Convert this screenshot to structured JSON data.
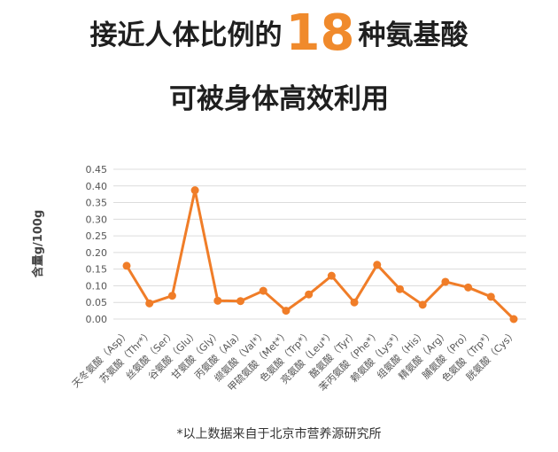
{
  "headline": {
    "line1_before": "接近人体比例的",
    "line1_number": "18",
    "line1_after": "种氨基酸",
    "line2": "可被身体高效利用"
  },
  "chart_data": {
    "type": "line",
    "title": "",
    "xlabel": "",
    "ylabel": "含量g/100g",
    "ylim": [
      0,
      0.45
    ],
    "yticks": [
      "0.00",
      "0.05",
      "0.10",
      "0.15",
      "0.20",
      "0.25",
      "0.30",
      "0.35",
      "0.40",
      "0.45"
    ],
    "grid": true,
    "categories": [
      "天冬氨酸（Asp）",
      "苏氨酸（Thr*）",
      "丝氨酸（Ser）",
      "谷氨酸（Glu）",
      "甘氨酸（Gly）",
      "丙氨酸（Ala）",
      "缬氨酸（Val*）",
      "甲硫氨酸（Met*）",
      "色氨酸（Trp*）",
      "亮氨酸（Leu*）",
      "酪氨酸（Tyr）",
      "苯丙氨酸（Phe*）",
      "赖氨酸（Lys*）",
      "组氨酸（His）",
      "精氨酸（Arg）",
      "脯氨酸（Pro）",
      "色氨酸（Trp*）",
      "胱氨酸（Cys）"
    ],
    "series": [
      {
        "values": [
          0.16,
          0.047,
          0.07,
          0.387,
          0.055,
          0.054,
          0.085,
          0.025,
          0.074,
          0.13,
          0.05,
          0.163,
          0.09,
          0.043,
          0.112,
          0.095,
          0.067,
          0.0
        ]
      }
    ],
    "colors": {
      "line": "#f07d28",
      "grid": "#dcdcdc",
      "accent": "#f08a2c"
    }
  },
  "footnote": "*以上数据来自于北京市营养源研究所"
}
